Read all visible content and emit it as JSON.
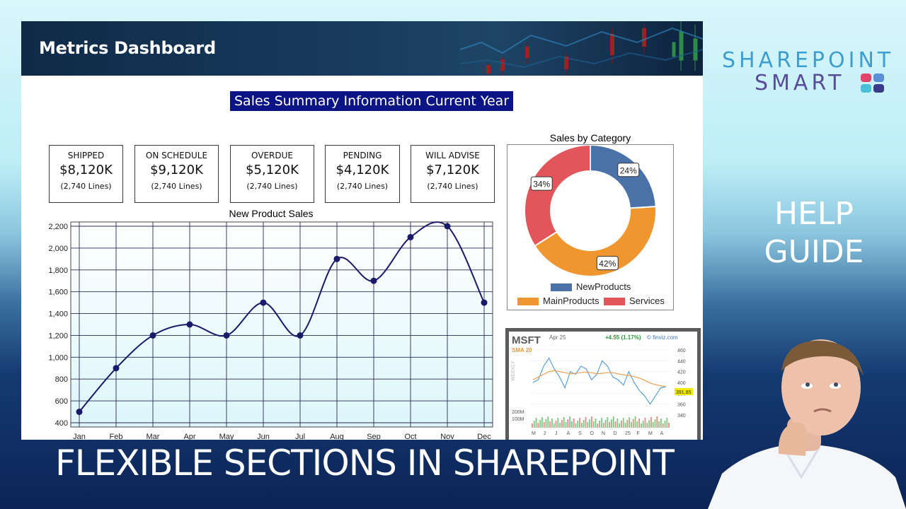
{
  "banner": {
    "title": "Metrics Dashboard"
  },
  "summary_title": "Sales Summary Information Current Year",
  "kpis": [
    {
      "label": "SHIPPED",
      "value": "$8,120K",
      "lines": "(2,740 Lines)"
    },
    {
      "label": "ON SCHEDULE",
      "value": "$9,120K",
      "lines": "(2,740 Lines)"
    },
    {
      "label": "OVERDUE",
      "value": "$5,120K",
      "lines": "(2,740 Lines)"
    },
    {
      "label": "PENDING",
      "value": "$4,120K",
      "lines": "(2,740 Lines)"
    },
    {
      "label": "WILL ADVISE",
      "value": "$7,120K",
      "lines": "(2,740 Lines)"
    }
  ],
  "chart_data": [
    {
      "type": "line",
      "title": "New Product Sales",
      "xlabel": "",
      "ylabel": "",
      "categories": [
        "Jan",
        "Feb",
        "Mar",
        "Apr",
        "May",
        "Jun",
        "Jul",
        "Aug",
        "Sep",
        "Oct",
        "Nov",
        "Dec"
      ],
      "values": [
        500,
        900,
        1200,
        1300,
        1200,
        1500,
        1200,
        1900,
        1700,
        2100,
        2200,
        1500
      ],
      "ylim": [
        400,
        2200
      ],
      "yticks": [
        "400",
        "600",
        "800",
        "1,000",
        "1,200",
        "1,400",
        "1,600",
        "1,800",
        "2,000",
        "2,200"
      ],
      "grid": true,
      "color": "#1a1a6b"
    },
    {
      "type": "pie",
      "title": "Sales by Category",
      "categories": [
        "NewProducts",
        "MainProducts",
        "Services"
      ],
      "values": [
        24,
        42,
        34
      ],
      "labels": [
        "24%",
        "42%",
        "34%"
      ],
      "colors": [
        "#4a72a8",
        "#f0962f",
        "#e2555a"
      ],
      "legend": "bottom"
    }
  ],
  "stock": {
    "symbol": "MSFT",
    "date": "Apr 25",
    "sma": "SMA 20",
    "change": "+4.55 (1.17%)",
    "source": "© finviz.com",
    "weekly": "WEEKLY",
    "price_label": "391.85",
    "price_ticks": [
      "460",
      "440",
      "420",
      "400",
      "380",
      "360",
      "340"
    ],
    "volume_ticks": [
      "200M",
      "100M"
    ],
    "months": [
      "M",
      "J",
      "J",
      "A",
      "S",
      "O",
      "N",
      "D",
      "25",
      "F",
      "M",
      "A"
    ]
  },
  "bottom_title": "FLEXIBLE SECTIONS IN SHAREPOINT",
  "help_guide": {
    "line1": "HELP",
    "line2": "GUIDE"
  },
  "logo": {
    "line1": "SHAREPOINT",
    "line2": "SMART"
  }
}
